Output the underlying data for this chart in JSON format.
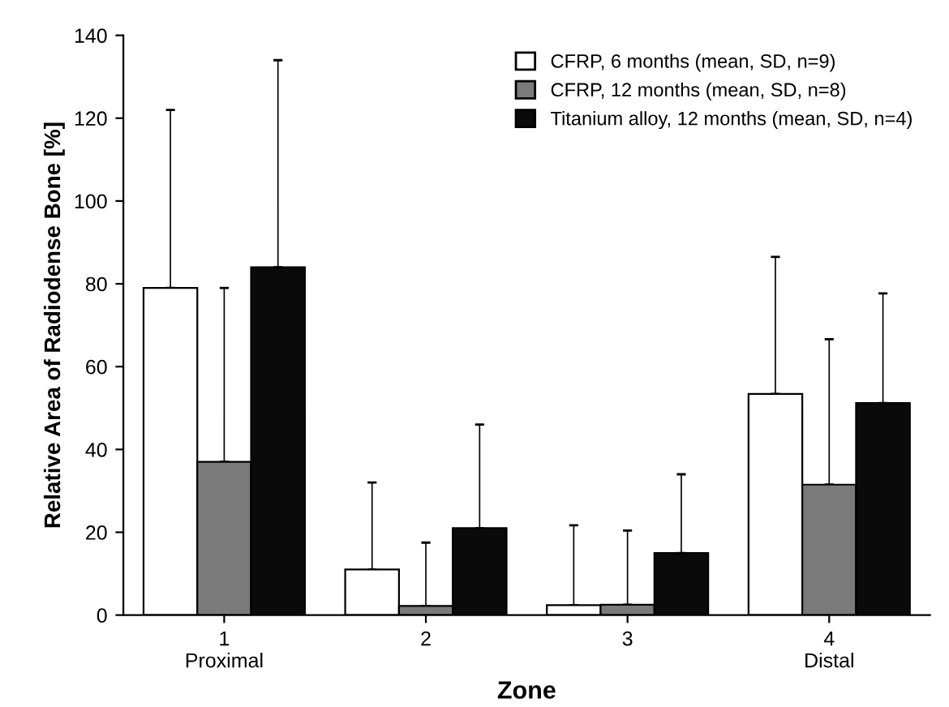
{
  "chart_data": {
    "type": "bar",
    "xlabel": "Zone",
    "ylabel": "Relative Area of Radiodense Bone [%]",
    "categories": [
      "1\nProximal",
      "2",
      "3",
      "4\nDistal"
    ],
    "series": [
      {
        "name": "CFRP, 6 months (mean, SD, n=9)",
        "color": "#ffffff",
        "values": [
          79,
          11,
          2.4,
          53.4
        ],
        "errors": [
          [
            79,
            122
          ],
          [
            11,
            32
          ],
          [
            2.4,
            21.7
          ],
          [
            53.4,
            86.5
          ]
        ]
      },
      {
        "name": "CFRP, 12 months (mean, SD, n=8)",
        "color": "#7a7a7a",
        "values": [
          37,
          2.2,
          2.5,
          31.5
        ],
        "errors": [
          [
            37,
            79
          ],
          [
            2.2,
            17.5
          ],
          [
            2.5,
            20.4
          ],
          [
            31.5,
            66.6
          ]
        ]
      },
      {
        "name": "Titanium alloy, 12 months (mean, SD, n=4)",
        "color": "#0a0a0a",
        "values": [
          84,
          21,
          15,
          51.2
        ],
        "errors": [
          [
            84,
            134
          ],
          [
            21,
            46
          ],
          [
            15,
            34
          ],
          [
            51.2,
            77.7
          ]
        ]
      }
    ],
    "ylim": [
      0,
      140
    ],
    "yticks": [
      0,
      20,
      40,
      60,
      80,
      100,
      120,
      140
    ],
    "grid": false,
    "legend": "top right"
  }
}
